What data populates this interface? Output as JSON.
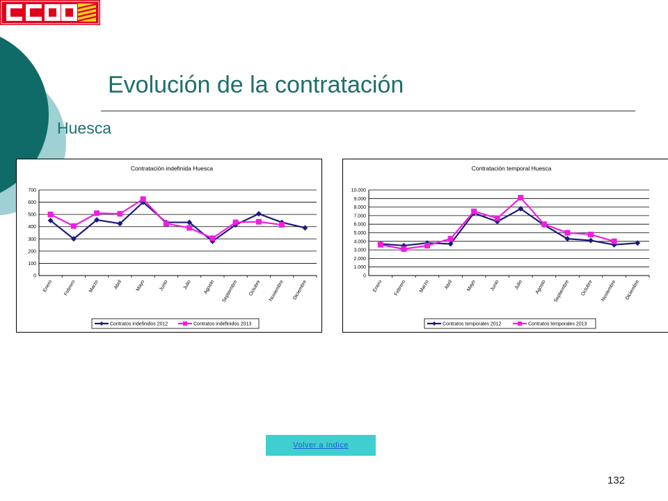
{
  "slide": {
    "title": "Evolución de la contratación",
    "subtitle": "Huesca",
    "nav_button_label": "Volver a índice",
    "page_number": "132",
    "logo_text": "CCOO"
  },
  "colors": {
    "teal_dark": "#0e6b68",
    "teal_light": "#9fd0d3",
    "title_text": "#1c6f6c",
    "logo_red": "#e2001a",
    "series_2012": "#1b1a7a",
    "series_2013": "#ee1ee0",
    "button_bg": "#40cfd0"
  },
  "chart_data": [
    {
      "type": "line",
      "title": "Contratación indefinida Huesca",
      "categories": [
        "Enero",
        "Febrero",
        "Marzo",
        "Abril",
        "Mayo",
        "Junio",
        "Julio",
        "Agosto",
        "Septiembre",
        "Octubre",
        "Noviembre",
        "Diciembre"
      ],
      "ytick_labels": [
        "0",
        "100",
        "200",
        "300",
        "400",
        "500",
        "600",
        "700"
      ],
      "ylim": [
        0,
        700
      ],
      "grid": true,
      "legend_position": "bottom",
      "series": [
        {
          "name": "Contratos indefinidos 2012",
          "values": [
            450,
            300,
            455,
            425,
            600,
            435,
            435,
            280,
            415,
            505,
            435,
            390
          ]
        },
        {
          "name": "Contratos indefinidos 2013",
          "values": [
            500,
            405,
            510,
            505,
            625,
            425,
            390,
            305,
            435,
            440,
            415,
            null
          ]
        }
      ]
    },
    {
      "type": "line",
      "title": "Contratación temporal Huesca",
      "categories": [
        "Enero",
        "Febrero",
        "Marzo",
        "Abril",
        "Mayo",
        "Junio",
        "Julio",
        "Agosto",
        "Septiembre",
        "Octubre",
        "Noviembre",
        "Diciembre"
      ],
      "ytick_labels": [
        "0",
        "1.000",
        "2.000",
        "3.000",
        "4.000",
        "5.000",
        "6.000",
        "7.000",
        "8.000",
        "9.000",
        "10.000"
      ],
      "ylim": [
        0,
        10000
      ],
      "grid": true,
      "legend_position": "bottom",
      "series": [
        {
          "name": "Contratos temporales 2012",
          "values": [
            3700,
            3500,
            3800,
            3700,
            7300,
            6300,
            7800,
            5900,
            4300,
            4100,
            3600,
            3800
          ]
        },
        {
          "name": "Contratos temporales 2013",
          "values": [
            3600,
            3100,
            3500,
            4300,
            7500,
            6700,
            9100,
            6000,
            5000,
            4800,
            4000,
            null
          ]
        }
      ]
    }
  ]
}
